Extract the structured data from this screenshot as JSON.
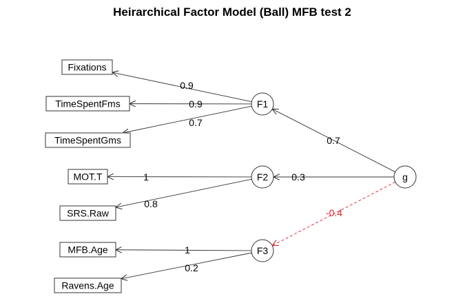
{
  "title": "Heirarchical Factor Model (Ball) MFB test 2",
  "manifest": [
    {
      "id": "Fixations",
      "label": "Fixations"
    },
    {
      "id": "TimeSpentFms",
      "label": "TimeSpentFms"
    },
    {
      "id": "TimeSpentGms",
      "label": "TimeSpentGms"
    },
    {
      "id": "MOT.T",
      "label": "MOT.T"
    },
    {
      "id": "SRS.Raw",
      "label": "SRS.Raw"
    },
    {
      "id": "MFB.Age",
      "label": "MFB.Age"
    },
    {
      "id": "Ravens.Age",
      "label": "Ravens.Age"
    }
  ],
  "factors": [
    {
      "id": "F1",
      "label": "F1"
    },
    {
      "id": "F2",
      "label": "F2"
    },
    {
      "id": "F3",
      "label": "F3"
    },
    {
      "id": "g",
      "label": "g"
    }
  ],
  "edges": [
    {
      "from": "F1",
      "to": "Fixations",
      "label": "0.9",
      "negative": false
    },
    {
      "from": "F1",
      "to": "TimeSpentFms",
      "label": "0.9",
      "negative": false
    },
    {
      "from": "F1",
      "to": "TimeSpentGms",
      "label": "0.7",
      "negative": false
    },
    {
      "from": "F2",
      "to": "MOT.T",
      "label": "1",
      "negative": false
    },
    {
      "from": "F2",
      "to": "SRS.Raw",
      "label": "0.8",
      "negative": false
    },
    {
      "from": "F3",
      "to": "MFB.Age",
      "label": "1",
      "negative": false
    },
    {
      "from": "F3",
      "to": "Ravens.Age",
      "label": "0.2",
      "negative": false
    },
    {
      "from": "g",
      "to": "F1",
      "label": "0.7",
      "negative": false
    },
    {
      "from": "g",
      "to": "F2",
      "label": "0.3",
      "negative": false
    },
    {
      "from": "g",
      "to": "F3",
      "label": "-0.4",
      "negative": true
    }
  ],
  "colors": {
    "positive": "#333333",
    "negative": "#e0202a",
    "node_stroke": "#333333"
  }
}
